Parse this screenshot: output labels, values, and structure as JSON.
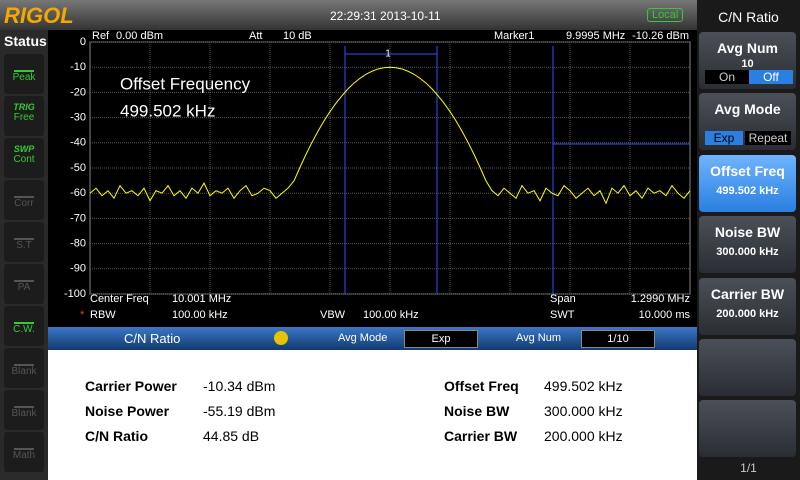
{
  "header": {
    "logo": "RIGOL",
    "datetime": "22:29:31 2013-10-11",
    "mode": "Local"
  },
  "status": {
    "title": "Status",
    "items": [
      {
        "top": "",
        "label": "Peak"
      },
      {
        "top": "TRIG",
        "label": "Free"
      },
      {
        "top": "SWP",
        "label": "Cont"
      },
      {
        "top": "",
        "label": "Corr"
      },
      {
        "top": "",
        "label": "S.T"
      },
      {
        "top": "",
        "label": "PA"
      },
      {
        "top": "",
        "label": "C.W."
      },
      {
        "top": "",
        "label": "Blank"
      },
      {
        "top": "",
        "label": "Blank"
      },
      {
        "top": "",
        "label": "Math"
      }
    ]
  },
  "plot": {
    "ref_label": "Ref",
    "ref_value": "0.00 dBm",
    "att_label": "Att",
    "att_value": "10 dB",
    "marker_label": "Marker1",
    "marker_freq": "9.9995 MHz",
    "marker_level": "-10.26 dBm",
    "marker_number": "1",
    "annotation_title": "Offset Frequency",
    "annotation_value": "499.502 kHz",
    "ylim": [
      -100,
      0
    ],
    "yticks": [
      0,
      -10,
      -20,
      -30,
      -40,
      -50,
      -60,
      -70,
      -80,
      -90,
      -100
    ],
    "grid": true,
    "trace_color": "#ffff00",
    "trace": [
      -60,
      -58,
      -61,
      -59,
      -62,
      -57,
      -60,
      -59,
      -61,
      -58,
      -63,
      -59,
      -60,
      -57,
      -61,
      -59,
      -62,
      -58,
      -60,
      -56,
      -61,
      -59,
      -60,
      -58,
      -62,
      -59,
      -57,
      -61,
      -60,
      -58,
      -59,
      -62,
      -60,
      -58,
      -55.1,
      -49.7,
      -44.6,
      -39.8,
      -35.4,
      -31.3,
      -27.6,
      -24.3,
      -21.3,
      -18.6,
      -16.3,
      -14.4,
      -12.8,
      -11.6,
      -10.7,
      -10.2,
      -10,
      -10.2,
      -10.7,
      -11.6,
      -12.8,
      -14.4,
      -16.3,
      -18.6,
      -21.3,
      -24.3,
      -27.6,
      -31.3,
      -35.4,
      -39.8,
      -44.6,
      -49.7,
      -55.1,
      -59,
      -61,
      -58,
      -60,
      -62,
      -57,
      -60,
      -59,
      -63,
      -58,
      -60,
      -61,
      -57,
      -59,
      -62,
      -60,
      -58,
      -61,
      -59,
      -64,
      -58,
      -60,
      -57,
      -61,
      -59,
      -62,
      -58,
      -60,
      -59,
      -61,
      -57,
      -60,
      -62,
      -59
    ],
    "center_label": "Center Freq",
    "center_value": "10.001 MHz",
    "span_label": "Span",
    "span_value": "1.2990 MHz",
    "rbw_flag": "*",
    "rbw_label": "RBW",
    "rbw_value": "100.00 kHz",
    "vbw_label": "VBW",
    "vbw_value": "100.00 kHz",
    "swt_label": "SWT",
    "swt_value": "10.000 ms"
  },
  "panel": {
    "title": "C/N Ratio",
    "avg_mode_label": "Avg Mode",
    "avg_mode_value": "Exp",
    "avg_num_label": "Avg Num",
    "avg_num_value": "1/10"
  },
  "results": {
    "left": [
      {
        "label": "Carrier Power",
        "value": "-10.34 dBm"
      },
      {
        "label": "Noise Power",
        "value": "-55.19 dBm"
      },
      {
        "label": "C/N Ratio",
        "value": "44.85 dB"
      }
    ],
    "right": [
      {
        "label": "Offset Freq",
        "value": "499.502 kHz"
      },
      {
        "label": "Noise BW",
        "value": "300.000 kHz"
      },
      {
        "label": "Carrier BW",
        "value": "200.000 kHz"
      }
    ]
  },
  "menu": {
    "title": "C/N Ratio",
    "avg_num": {
      "label": "Avg Num",
      "value": "10",
      "on": "On",
      "off": "Off"
    },
    "avg_mode": {
      "label": "Avg Mode",
      "exp": "Exp",
      "repeat": "Repeat"
    },
    "offset_freq": {
      "label": "Offset Freq",
      "value": "499.502 kHz"
    },
    "noise_bw": {
      "label": "Noise BW",
      "value": "300.000 kHz"
    },
    "carrier_bw": {
      "label": "Carrier BW",
      "value": "200.000 kHz"
    },
    "page": "1/1"
  }
}
